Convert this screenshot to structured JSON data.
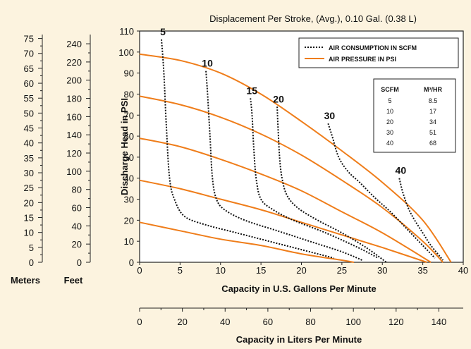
{
  "chart_data": {
    "type": "line",
    "title": "Displacement Per Stroke, (Avg.), 0.10 Gal. (0.38 L)",
    "xlabel": "Capacity in U.S. Gallons Per Minute",
    "ylabel": "Discharge Head in PSI",
    "xlim": [
      0,
      40
    ],
    "ylim": [
      0,
      110
    ],
    "x_ticks": [
      "0",
      "5",
      "10",
      "15",
      "20",
      "25",
      "30",
      "35",
      "40"
    ],
    "y_ticks": [
      "0",
      "10",
      "20",
      "30",
      "40",
      "50",
      "60",
      "70",
      "80",
      "90",
      "100",
      "110"
    ],
    "secondary_x_axis": {
      "label": "Capacity in Liters Per Minute",
      "ticks": [
        "0",
        "20",
        "40",
        "60",
        "80",
        "100",
        "120",
        "140"
      ],
      "lim": [
        0,
        151.4
      ]
    },
    "left_scales": [
      {
        "label": "Meters",
        "ticks": [
          "0",
          "5",
          "10",
          "15",
          "20",
          "25",
          "30",
          "35",
          "40",
          "45",
          "50",
          "55",
          "60",
          "65",
          "70",
          "75"
        ]
      },
      {
        "label": "Feet",
        "ticks": [
          "0",
          "20",
          "40",
          "60",
          "80",
          "100",
          "120",
          "140",
          "160",
          "180",
          "200",
          "220",
          "240"
        ]
      }
    ],
    "legend": {
      "position": "top-right",
      "entries": [
        "AIR CONSUMPTION IN SCFM",
        "AIR PRESSURE IN PSI"
      ]
    },
    "conversion_table": {
      "headers": [
        "SCFM",
        "M³/HR"
      ],
      "rows": [
        [
          "5",
          "8.5"
        ],
        [
          "10",
          "17"
        ],
        [
          "20",
          "34"
        ],
        [
          "30",
          "51"
        ],
        [
          "40",
          "68"
        ]
      ]
    },
    "air_pressure_series": [
      {
        "style": "solid",
        "color": "#ef7d1a",
        "x": [
          0,
          5,
          10,
          15,
          20,
          25,
          30,
          35,
          38.5
        ],
        "y": [
          99,
          96,
          90,
          80,
          67,
          53,
          38,
          20,
          0
        ]
      },
      {
        "style": "solid",
        "color": "#ef7d1a",
        "x": [
          0,
          5,
          10,
          15,
          20,
          25,
          30,
          35,
          37.5
        ],
        "y": [
          79,
          75,
          69,
          61,
          51,
          39,
          26,
          10,
          0
        ]
      },
      {
        "style": "solid",
        "color": "#ef7d1a",
        "x": [
          0,
          5,
          10,
          15,
          20,
          25,
          30,
          36
        ],
        "y": [
          59,
          55,
          49,
          42,
          34,
          24,
          14,
          0
        ]
      },
      {
        "style": "solid",
        "color": "#ef7d1a",
        "x": [
          0,
          5,
          10,
          15,
          20,
          25,
          30,
          35.5
        ],
        "y": [
          39,
          35,
          30,
          25,
          19,
          13,
          7,
          0
        ]
      },
      {
        "style": "solid",
        "color": "#ef7d1a",
        "x": [
          0,
          5,
          10,
          15,
          20,
          25,
          26.5
        ],
        "y": [
          19,
          15,
          11,
          8,
          4,
          1,
          0
        ]
      }
    ],
    "air_consumption_series": [
      {
        "label": "5",
        "style": "dotted",
        "color": "#111111",
        "x": [
          2.7,
          3.0,
          3.3,
          3.7,
          4.3,
          5.5,
          8,
          12,
          16,
          20,
          24
        ],
        "y": [
          106,
          90,
          65,
          40,
          30,
          22,
          18,
          14,
          10,
          6,
          2
        ]
      },
      {
        "label": "10",
        "style": "dotted",
        "color": "#111111",
        "x": [
          8.2,
          8.4,
          8.7,
          9.0,
          9.5,
          10.5,
          13,
          17,
          21,
          25,
          27.5
        ],
        "y": [
          91,
          80,
          60,
          40,
          30,
          25,
          20,
          15,
          10,
          5,
          1
        ]
      },
      {
        "label": "15",
        "style": "dotted",
        "color": "#111111",
        "x": [
          13.7,
          13.9,
          14.1,
          14.4,
          15,
          16.5,
          19,
          23,
          27,
          29.5
        ],
        "y": [
          78,
          70,
          55,
          40,
          30,
          25,
          20,
          14,
          7,
          2
        ]
      },
      {
        "label": "20",
        "style": "dotted",
        "color": "#111111",
        "x": [
          17.0,
          17.1,
          17.3,
          17.6,
          18.2,
          19.5,
          22,
          25,
          28,
          30.5
        ],
        "y": [
          74,
          65,
          50,
          40,
          32,
          26,
          20,
          14,
          7,
          0
        ]
      },
      {
        "label": "30",
        "style": "dotted",
        "color": "#111111",
        "x": [
          23.3,
          23.8,
          24.6,
          25.8,
          27.2,
          29,
          31,
          33,
          35,
          36.5
        ],
        "y": [
          66,
          60,
          50,
          43,
          38,
          31,
          24,
          16,
          8,
          2
        ]
      },
      {
        "label": "40",
        "style": "dotted",
        "color": "#111111",
        "x": [
          32.1,
          32.4,
          32.8,
          33.3,
          34,
          35,
          36,
          37.5
        ],
        "y": [
          40,
          35,
          30,
          25,
          20,
          14,
          8,
          1
        ]
      }
    ]
  }
}
